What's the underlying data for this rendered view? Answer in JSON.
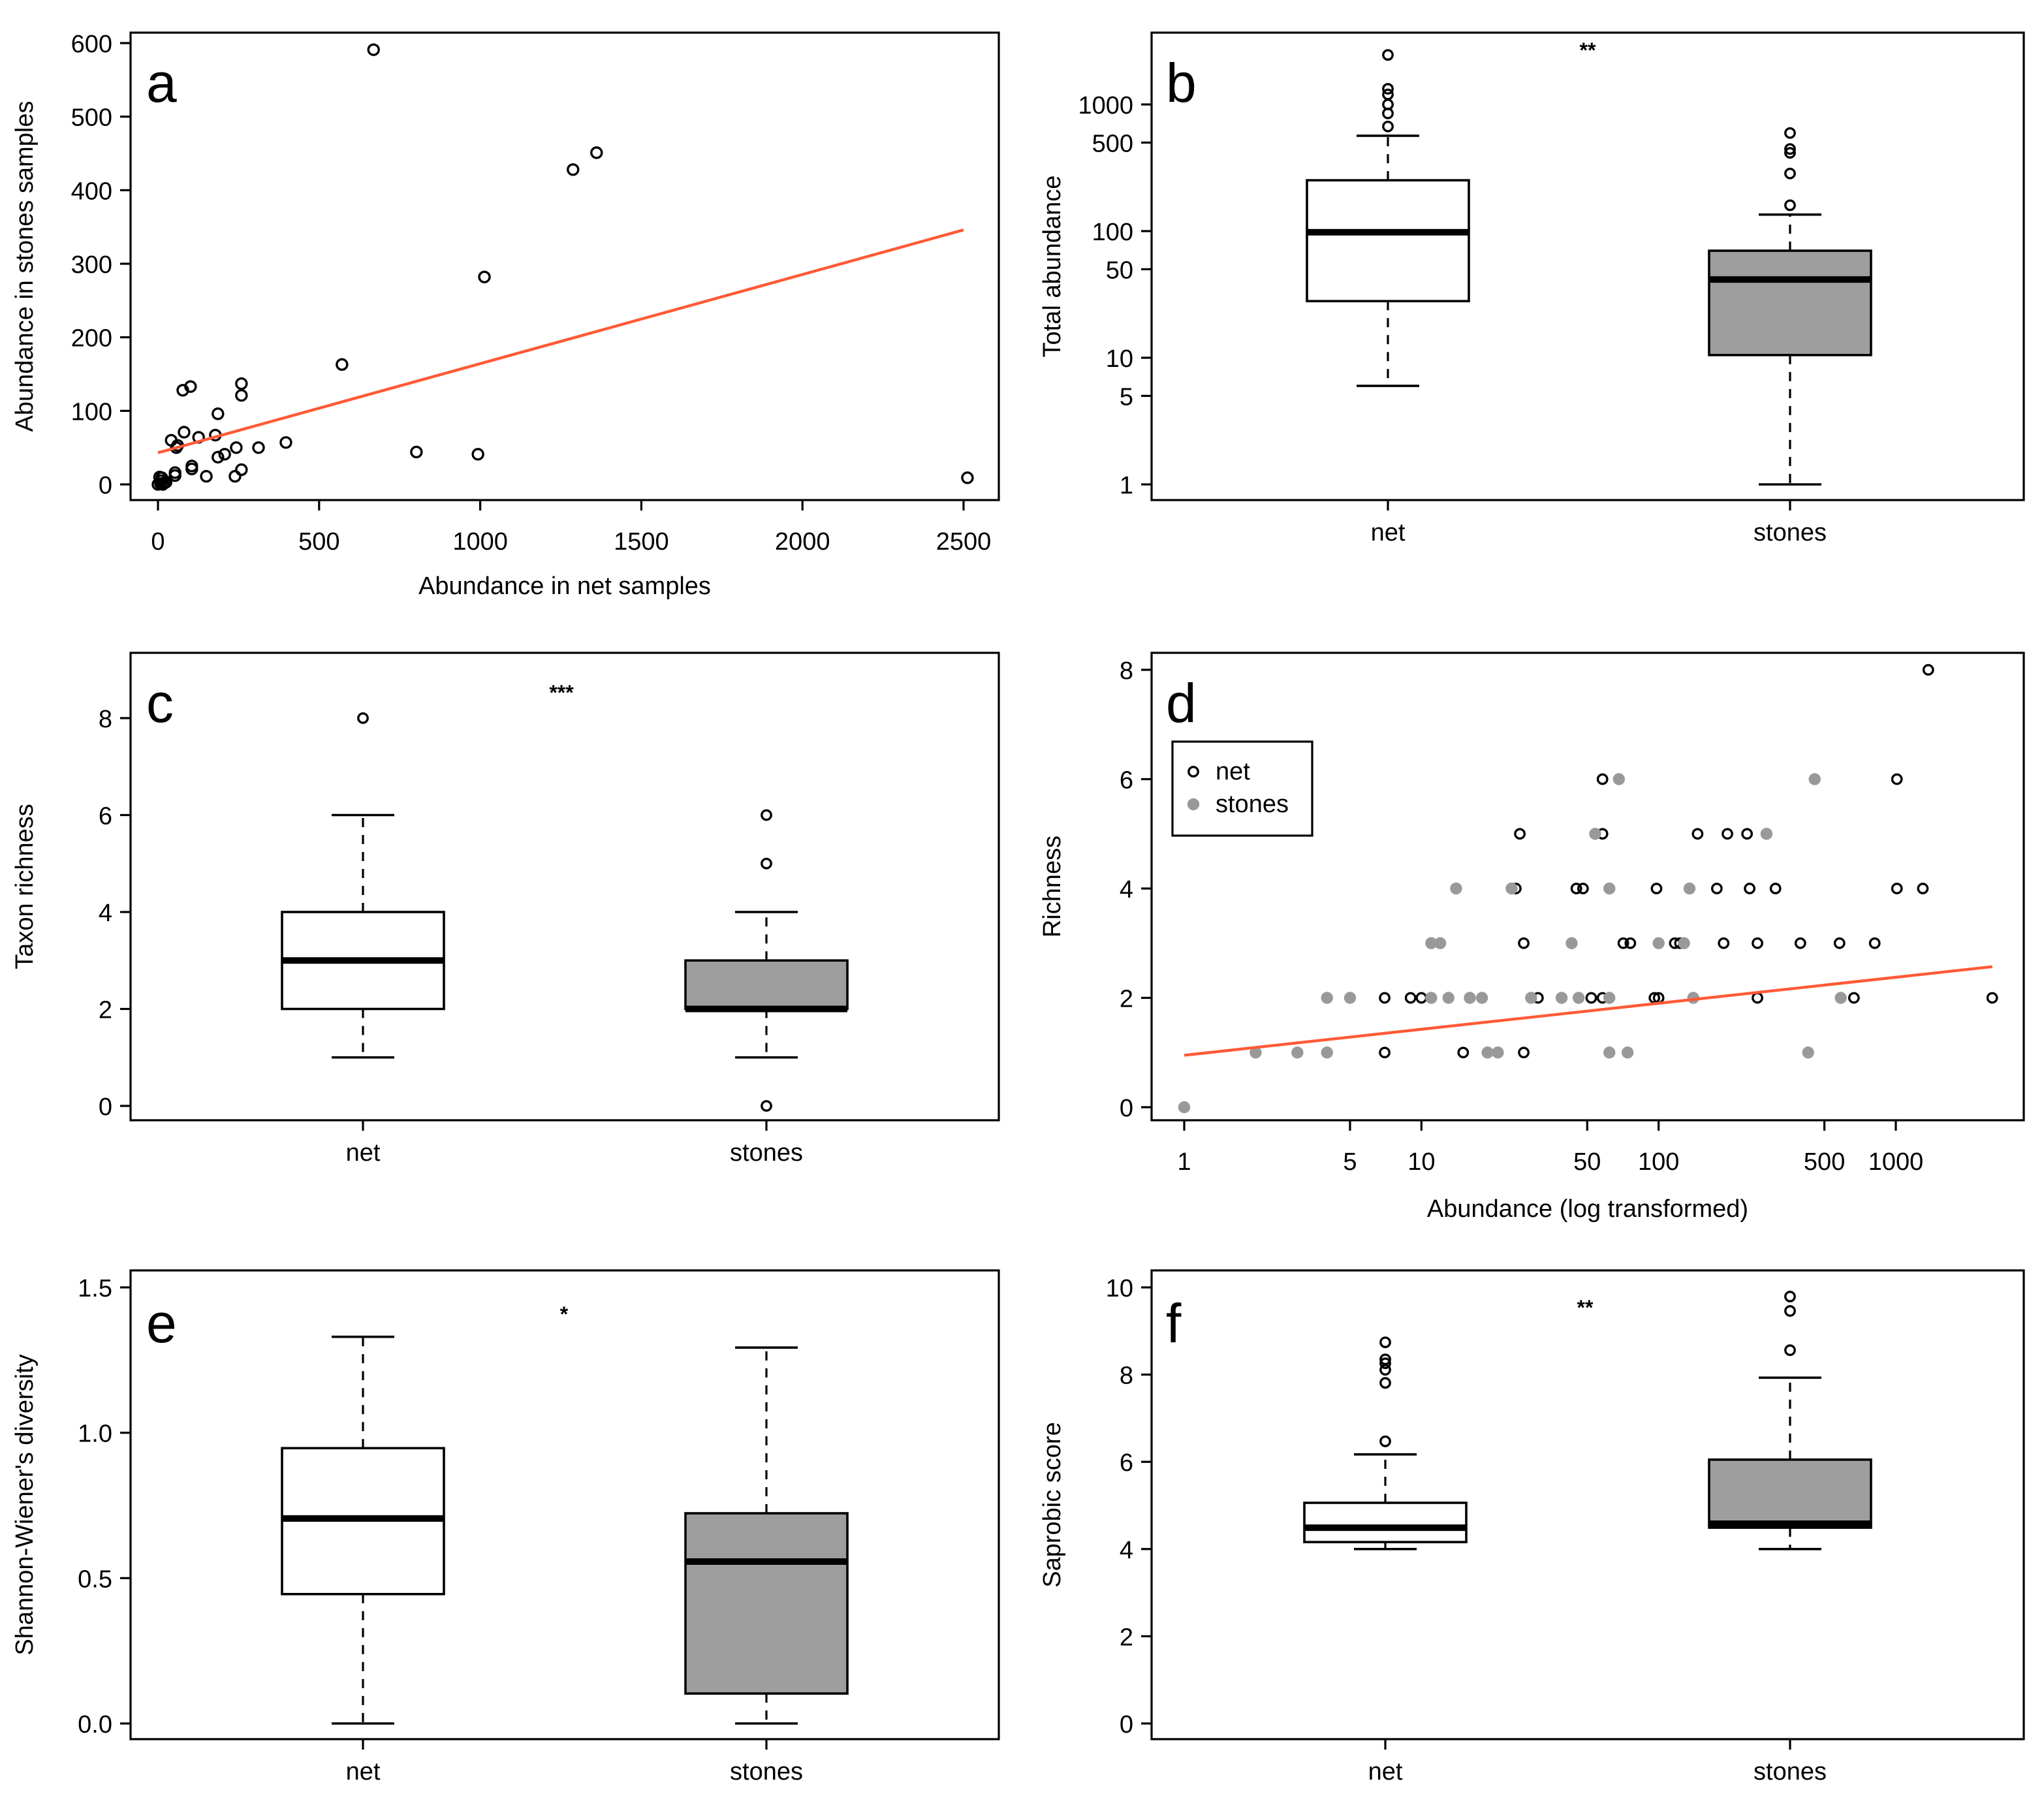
{
  "colors": {
    "regression": "#ff5a36",
    "stones_fill": "#9e9e9e",
    "stones_point": "#999999",
    "ink": "#000000"
  },
  "chart_data": [
    {
      "panel": "a",
      "type": "scatter",
      "xlabel": "Abundance in net samples",
      "ylabel": "Abundance in stones samples",
      "xticks": [
        0,
        500,
        1000,
        1500,
        2000,
        2500
      ],
      "yticks": [
        0,
        100,
        200,
        300,
        400,
        500,
        600
      ],
      "xlim": [
        0,
        2600
      ],
      "ylim": [
        0,
        600
      ],
      "points": [
        [
          669,
          591
        ],
        [
          1288,
          428
        ],
        [
          1361,
          451
        ],
        [
          1013,
          282
        ],
        [
          571,
          163
        ],
        [
          802,
          44
        ],
        [
          993,
          41
        ],
        [
          2512,
          9
        ],
        [
          259,
          137
        ],
        [
          259,
          121
        ],
        [
          77,
          128
        ],
        [
          101,
          133
        ],
        [
          186,
          96
        ],
        [
          397,
          57
        ],
        [
          312,
          50
        ],
        [
          178,
          67
        ],
        [
          126,
          64
        ],
        [
          41,
          60
        ],
        [
          81,
          71
        ],
        [
          61,
          53
        ],
        [
          57,
          50
        ],
        [
          243,
          50
        ],
        [
          207,
          41
        ],
        [
          186,
          37
        ],
        [
          105,
          25
        ],
        [
          105,
          21
        ],
        [
          53,
          12
        ],
        [
          12,
          9
        ],
        [
          150,
          11
        ],
        [
          259,
          20
        ],
        [
          239,
          11
        ],
        [
          53,
          16
        ],
        [
          5,
          10
        ],
        [
          10,
          5
        ],
        [
          20,
          2
        ],
        [
          0,
          0
        ],
        [
          15,
          0
        ],
        [
          25,
          3
        ],
        [
          8,
          1
        ]
      ],
      "regression": {
        "x": [
          0,
          2500
        ],
        "y": [
          43,
          346
        ]
      }
    },
    {
      "panel": "b",
      "type": "box",
      "scale": "log",
      "ylabel": "Total abundance",
      "yticks": [
        1,
        5,
        10,
        50,
        100,
        500,
        1000
      ],
      "significance": "**",
      "categories": [
        "net",
        "stones"
      ],
      "boxes": [
        {
          "name": "net",
          "q1": 28,
          "median": 98,
          "q3": 252,
          "whisker_low": 6,
          "whisker_high": 566,
          "outliers": [
            2460,
            1330,
            1200,
            1000,
            850,
            670
          ],
          "fill": "#ffffff"
        },
        {
          "name": "stones",
          "q1": 10.5,
          "median": 41.5,
          "q3": 70,
          "whisker_low": 1,
          "whisker_high": 135,
          "outliers": [
            595,
            445,
            415,
            285,
            160
          ],
          "fill": "#9e9e9e"
        }
      ]
    },
    {
      "panel": "c",
      "type": "box",
      "ylabel": "Taxon richness",
      "yticks": [
        0,
        2,
        4,
        6,
        8
      ],
      "significance": "***",
      "categories": [
        "net",
        "stones"
      ],
      "boxes": [
        {
          "name": "net",
          "q1": 2,
          "median": 3,
          "q3": 4,
          "whisker_low": 1,
          "whisker_high": 6,
          "outliers": [
            8
          ],
          "fill": "#ffffff"
        },
        {
          "name": "stones",
          "q1": 2,
          "median": 2,
          "q3": 3,
          "whisker_low": 1,
          "whisker_high": 4,
          "outliers": [
            5,
            6,
            0
          ],
          "fill": "#9e9e9e"
        }
      ]
    },
    {
      "panel": "d",
      "type": "scatter",
      "xscale": "log",
      "xlabel": "Abundance (log transformed)",
      "ylabel": "Richness",
      "xticks": [
        1,
        5,
        10,
        50,
        100,
        500,
        1000
      ],
      "yticks": [
        0,
        2,
        4,
        6,
        8
      ],
      "legend": {
        "position": "top-left",
        "entries": [
          "net",
          "stones"
        ]
      },
      "series": [
        {
          "name": "net",
          "points": [
            [
              1371,
              8
            ],
            [
              58,
              6
            ],
            [
              1011,
              6
            ],
            [
              26,
              5
            ],
            [
              58,
              5
            ],
            [
              146,
              5
            ],
            [
              195,
              5
            ],
            [
              236,
              5
            ],
            [
              25,
              4
            ],
            [
              45,
              4
            ],
            [
              48,
              4
            ],
            [
              98,
              4
            ],
            [
              176,
              4
            ],
            [
              242,
              4
            ],
            [
              311,
              4
            ],
            [
              1011,
              4
            ],
            [
              1300,
              4
            ],
            [
              27,
              3
            ],
            [
              71,
              3
            ],
            [
              76,
              3
            ],
            [
              117,
              3
            ],
            [
              123,
              3
            ],
            [
              188,
              3
            ],
            [
              261,
              3
            ],
            [
              396,
              3
            ],
            [
              579,
              3
            ],
            [
              815,
              3
            ],
            [
              7,
              2
            ],
            [
              9,
              2
            ],
            [
              10,
              2
            ],
            [
              31,
              2
            ],
            [
              52,
              2
            ],
            [
              58,
              2
            ],
            [
              96,
              2
            ],
            [
              100,
              2
            ],
            [
              261,
              2
            ],
            [
              666,
              2
            ],
            [
              2550,
              2
            ],
            [
              7,
              1
            ],
            [
              15,
              1
            ],
            [
              27,
              1
            ]
          ]
        },
        {
          "name": "stones",
          "points": [
            [
              68,
              6
            ],
            [
              455,
              6
            ],
            [
              54,
              5
            ],
            [
              285,
              5
            ],
            [
              14,
              4
            ],
            [
              24,
              4
            ],
            [
              62,
              4
            ],
            [
              135,
              4
            ],
            [
              11,
              3
            ],
            [
              12,
              3
            ],
            [
              43,
              3
            ],
            [
              100,
              3
            ],
            [
              128,
              3
            ],
            [
              4,
              2
            ],
            [
              5,
              2
            ],
            [
              11,
              2
            ],
            [
              13,
              2
            ],
            [
              16,
              2
            ],
            [
              18,
              2
            ],
            [
              29,
              2
            ],
            [
              39,
              2
            ],
            [
              46,
              2
            ],
            [
              62,
              2
            ],
            [
              140,
              2
            ],
            [
              586,
              2
            ],
            [
              2,
              1
            ],
            [
              3,
              1
            ],
            [
              4,
              1
            ],
            [
              19,
              1
            ],
            [
              21,
              1
            ],
            [
              62,
              1
            ],
            [
              74,
              1
            ],
            [
              427,
              1
            ],
            [
              1,
              0
            ]
          ]
        }
      ],
      "regression": {
        "x": [
          1,
          2550
        ],
        "y": [
          0.95,
          2.57
        ]
      }
    },
    {
      "panel": "e",
      "type": "box",
      "ylabel": "Shannon-Wiener's diversity",
      "yticks": [
        0.0,
        0.5,
        1.0,
        1.5
      ],
      "ytick_labels": [
        "0.0",
        "0.5",
        "1.0",
        "1.5"
      ],
      "significance": "*",
      "categories": [
        "net",
        "stones"
      ],
      "boxes": [
        {
          "name": "net",
          "q1": 0.445,
          "median": 0.705,
          "q3": 0.947,
          "whisker_low": 0,
          "whisker_high": 1.33,
          "outliers": [],
          "fill": "#ffffff"
        },
        {
          "name": "stones",
          "q1": 0.103,
          "median": 0.557,
          "q3": 0.723,
          "whisker_low": 0,
          "whisker_high": 1.293,
          "outliers": [],
          "fill": "#9e9e9e"
        }
      ]
    },
    {
      "panel": "f",
      "type": "box",
      "ylabel": "Saprobic score",
      "yticks": [
        0,
        2,
        4,
        6,
        8,
        10
      ],
      "significance": "**",
      "categories": [
        "net",
        "stones"
      ],
      "boxes": [
        {
          "name": "net",
          "q1": 4.16,
          "median": 4.49,
          "q3": 5.06,
          "whisker_low": 4.0,
          "whisker_high": 6.17,
          "outliers": [
            6.47,
            7.81,
            8.11,
            8.26,
            8.35,
            8.74
          ],
          "fill": "#ffffff"
        },
        {
          "name": "stones",
          "q1": 4.49,
          "median": 4.58,
          "q3": 6.05,
          "whisker_low": 4.0,
          "whisker_high": 7.93,
          "outliers": [
            8.56,
            9.46,
            9.79
          ],
          "fill": "#9e9e9e"
        }
      ]
    }
  ]
}
